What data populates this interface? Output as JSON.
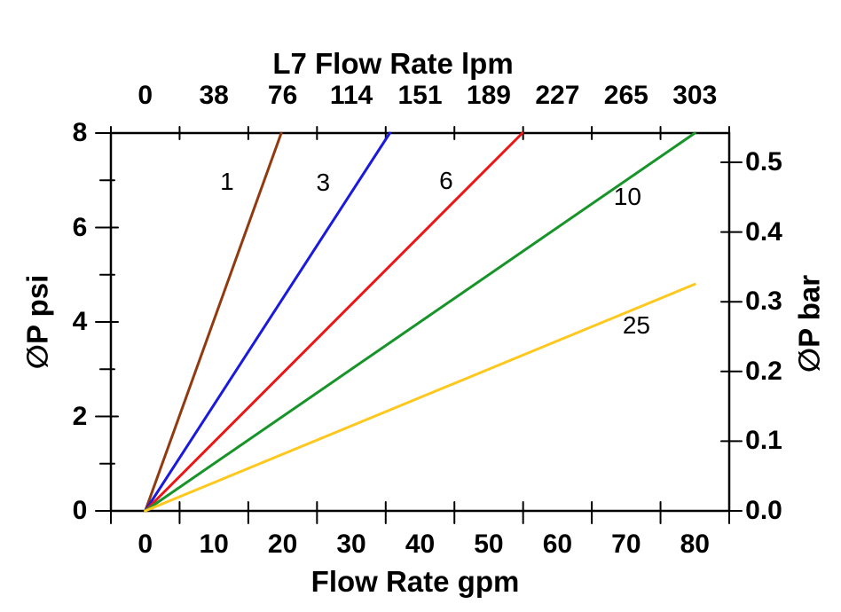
{
  "figure": {
    "background_color": "#ffffff",
    "axis_color": "#000000",
    "top_axis": {
      "title": "L7 Flow Rate lpm",
      "tick_labels": [
        "0",
        "38",
        "76",
        "114",
        "151",
        "189",
        "227",
        "265",
        "303"
      ]
    },
    "bottom_axis": {
      "title": "Flow Rate gpm",
      "tick_labels": [
        "0",
        "10",
        "20",
        "30",
        "40",
        "50",
        "60",
        "70",
        "80"
      ]
    },
    "left_axis": {
      "title": "∅P psi",
      "tick_labels": [
        "0",
        "2",
        "4",
        "6",
        "8"
      ]
    },
    "right_axis": {
      "title": "∅P bar",
      "tick_labels": [
        "0.0",
        "0.1",
        "0.2",
        "0.3",
        "0.4",
        "0.5"
      ]
    }
  },
  "chart_data": {
    "type": "line",
    "title": "L7 Flow Rate lpm",
    "xlabel_bottom": "Flow Rate gpm",
    "xlabel_top": "L7 Flow Rate lpm",
    "ylabel_left": "∅P psi",
    "ylabel_right": "∅P bar",
    "x_gpm": {
      "min": 0,
      "max": 80,
      "major_tick_step": 10
    },
    "x_lpm_ticks": [
      0,
      38,
      76,
      114,
      151,
      189,
      227,
      265,
      303
    ],
    "y_psi": {
      "min": 0,
      "max": 8,
      "major_tick_step": 2,
      "minor_ticks": [
        1,
        3,
        5,
        7
      ]
    },
    "y_bar_ticks": [
      0.0,
      0.1,
      0.2,
      0.3,
      0.4,
      0.5
    ],
    "grid": false,
    "legend": "inline-labels",
    "series": [
      {
        "name": "1",
        "color": "#913A0F",
        "points_gpm_psi": [
          [
            0,
            0
          ],
          [
            19.8,
            8.0
          ]
        ]
      },
      {
        "name": "3",
        "color": "#1A1ADF",
        "points_gpm_psi": [
          [
            0,
            0
          ],
          [
            35.6,
            8.0
          ]
        ]
      },
      {
        "name": "6",
        "color": "#ED1515",
        "points_gpm_psi": [
          [
            0,
            0
          ],
          [
            54.9,
            8.0
          ]
        ]
      },
      {
        "name": "10",
        "color": "#169428",
        "points_gpm_psi": [
          [
            0,
            0
          ],
          [
            80.0,
            8.0
          ]
        ]
      },
      {
        "name": "25",
        "color": "#FFC81E",
        "points_gpm_psi": [
          [
            0,
            0
          ],
          [
            80.0,
            4.8
          ]
        ]
      }
    ],
    "annotations": [
      {
        "label": "1",
        "gpm": 11.9,
        "psi": 6.97
      },
      {
        "label": "3",
        "gpm": 25.9,
        "psi": 6.95
      },
      {
        "label": "6",
        "gpm": 43.8,
        "psi": 6.99
      },
      {
        "label": "10",
        "gpm": 70.2,
        "psi": 6.64
      },
      {
        "label": "25",
        "gpm": 71.5,
        "psi": 3.92
      }
    ]
  }
}
